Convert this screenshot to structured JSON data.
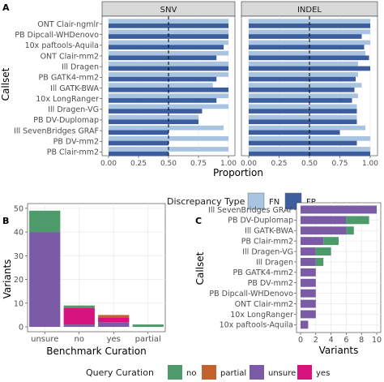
{
  "colors": {
    "fn": "#a8c4e0",
    "fp": "#3c5e9e",
    "strip_bg": "#d9d9d9",
    "grid": "#ebebeb",
    "axis_text": "#4d4d4d",
    "no": "#4d9a6a",
    "partial": "#c4622d",
    "unsure": "#7b5aa6",
    "yes": "#d6137e",
    "vline": "#000000"
  },
  "panels": {
    "A": {
      "letter": "A"
    },
    "B": {
      "letter": "B"
    },
    "C": {
      "letter": "C"
    }
  },
  "chart_data": [
    {
      "panel": "A",
      "type": "bar",
      "orientation": "horizontal",
      "facets": [
        "SNV",
        "INDEL"
      ],
      "ylabel": "Callset",
      "xlabel": "Proportion",
      "xlim": [
        0,
        1
      ],
      "x_ticks": [
        "0.00",
        "0.25",
        "0.50",
        "0.75",
        "1.00"
      ],
      "reference_line_x": 0.5,
      "categories": [
        "ONT Clair-ngmlr",
        "PB Dipcall-WHDenovo",
        "10x paftools-Aquila",
        "ONT Clair-mm2",
        "Ill Dragen",
        "PB GATK4-mm2",
        "Ill GATK-BWA",
        "10x LongRanger",
        "Ill Dragen-VG",
        "PB DV-Duplomap",
        "Ill SevenBridges GRAF",
        "PB DV-mm2",
        "PB Clair-mm2"
      ],
      "series": [
        {
          "name": "FN",
          "facet": "SNV",
          "values": [
            1.0,
            1.0,
            1.0,
            1.0,
            1.0,
            1.0,
            0.87,
            1.0,
            1.0,
            0.75,
            0.96,
            1.0,
            1.0
          ]
        },
        {
          "name": "FP",
          "facet": "SNV",
          "values": [
            1.0,
            1.0,
            0.96,
            0.9,
            1.0,
            0.9,
            1.0,
            0.9,
            0.78,
            0.75,
            0.5,
            0.5,
            0.5
          ]
        },
        {
          "name": "FN",
          "facet": "INDEL",
          "values": [
            1.0,
            1.0,
            1.0,
            0.96,
            0.9,
            0.9,
            0.93,
            0.9,
            0.89,
            0.89,
            0.96,
            1.0,
            1.0
          ]
        },
        {
          "name": "FP",
          "facet": "INDEL",
          "values": [
            1.0,
            0.93,
            0.95,
            0.99,
            1.0,
            0.88,
            0.87,
            0.85,
            0.89,
            0.89,
            0.75,
            0.89,
            1.0
          ]
        }
      ],
      "legend": {
        "title": "Discrepancy Type",
        "entries": [
          "FN",
          "FP"
        ],
        "position": "bottom"
      },
      "grid": true
    },
    {
      "panel": "B",
      "type": "bar",
      "stacked": true,
      "categories": [
        "unsure",
        "no",
        "yes",
        "partial"
      ],
      "xlabel": "Benchmark Curation",
      "ylabel": "Variants",
      "ylim": [
        0,
        52
      ],
      "y_ticks": [
        "0",
        "10",
        "20",
        "30",
        "40",
        "50"
      ],
      "series": [
        {
          "name": "unsure",
          "values": [
            40,
            1,
            2,
            0
          ]
        },
        {
          "name": "yes",
          "values": [
            0,
            7,
            2,
            0
          ]
        },
        {
          "name": "partial",
          "values": [
            0,
            0,
            1,
            0
          ]
        },
        {
          "name": "no",
          "values": [
            9,
            1,
            0,
            1
          ]
        }
      ],
      "legend": {
        "title": "Query Curation",
        "entries": [
          "no",
          "partial",
          "unsure",
          "yes"
        ],
        "position": "bottom"
      },
      "grid": true
    },
    {
      "panel": "C",
      "type": "bar",
      "orientation": "horizontal",
      "stacked": true,
      "xlabel": "Variants",
      "ylabel": "Callset",
      "xlim": [
        0,
        10.4
      ],
      "x_ticks": [
        "0",
        "2",
        "4",
        "6",
        "8",
        "10"
      ],
      "categories": [
        "Ill SevenBridges GRAF",
        "PB DV-Duplomap",
        "Ill GATK-BWA",
        "PB Clair-mm2",
        "Ill Dragen-VG",
        "Ill Dragen",
        "PB GATK4-mm2",
        "PB DV-mm2",
        "PB Dipcall-WHDenovo",
        "ONT Clair-mm2",
        "10x LongRanger",
        "10x paftools-Aquila"
      ],
      "series": [
        {
          "name": "unsure",
          "values": [
            10,
            6,
            6,
            3,
            2,
            2,
            2,
            2,
            2,
            2,
            2,
            1
          ]
        },
        {
          "name": "no",
          "values": [
            0,
            3,
            1,
            2,
            2,
            1,
            0,
            0,
            0,
            0,
            0,
            0
          ]
        }
      ],
      "grid": true
    }
  ]
}
